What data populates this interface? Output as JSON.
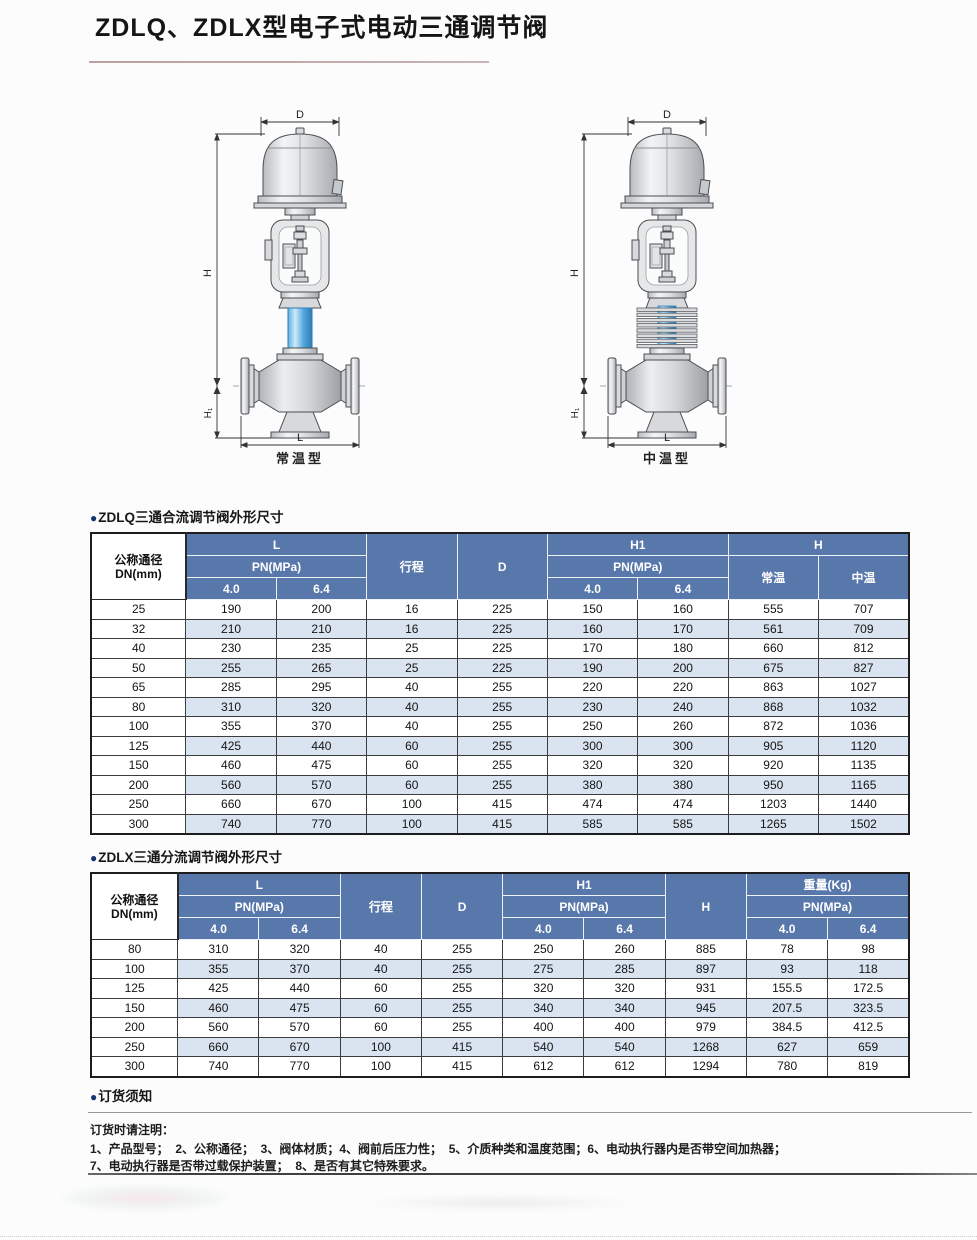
{
  "page": {
    "title": "ZDLQ、ZDLX型电子式电动三通调节阀"
  },
  "bullet": "●",
  "drawings": {
    "labels": {
      "d": "D",
      "h": "H",
      "h1": "H₁",
      "l": "L"
    },
    "left_caption": "常温型",
    "right_caption": "中温型"
  },
  "table1": {
    "title": "ZDLQ三通合流调节阀外形尺寸",
    "header": {
      "dn_line1": "公称通径",
      "dn_line2": "DN(mm)",
      "l": "L",
      "pn": "PN(MPa)",
      "p40": "4.0",
      "p64": "6.4",
      "stroke": "行程",
      "d": "D",
      "h1": "H1",
      "h": "H",
      "normal": "常温",
      "mid": "中温"
    },
    "rows": [
      [
        "25",
        "190",
        "200",
        "16",
        "225",
        "150",
        "160",
        "555",
        "707"
      ],
      [
        "32",
        "210",
        "210",
        "16",
        "225",
        "160",
        "170",
        "561",
        "709"
      ],
      [
        "40",
        "230",
        "235",
        "25",
        "225",
        "170",
        "180",
        "660",
        "812"
      ],
      [
        "50",
        "255",
        "265",
        "25",
        "225",
        "190",
        "200",
        "675",
        "827"
      ],
      [
        "65",
        "285",
        "295",
        "40",
        "255",
        "220",
        "220",
        "863",
        "1027"
      ],
      [
        "80",
        "310",
        "320",
        "40",
        "255",
        "230",
        "240",
        "868",
        "1032"
      ],
      [
        "100",
        "355",
        "370",
        "40",
        "255",
        "250",
        "260",
        "872",
        "1036"
      ],
      [
        "125",
        "425",
        "440",
        "60",
        "255",
        "300",
        "300",
        "905",
        "1120"
      ],
      [
        "150",
        "460",
        "475",
        "60",
        "255",
        "320",
        "320",
        "920",
        "1135"
      ],
      [
        "200",
        "560",
        "570",
        "60",
        "255",
        "380",
        "380",
        "950",
        "1165"
      ],
      [
        "250",
        "660",
        "670",
        "100",
        "415",
        "474",
        "474",
        "1203",
        "1440"
      ],
      [
        "300",
        "740",
        "770",
        "100",
        "415",
        "585",
        "585",
        "1265",
        "1502"
      ]
    ]
  },
  "table2": {
    "title": "ZDLX三通分流调节阀外形尺寸",
    "header": {
      "dn_line1": "公称通径",
      "dn_line2": "DN(mm)",
      "l": "L",
      "pn": "PN(MPa)",
      "p40": "4.0",
      "p64": "6.4",
      "stroke": "行程",
      "d": "D",
      "h1": "H1",
      "h": "H",
      "weight": "重量(Kg)"
    },
    "rows": [
      [
        "80",
        "310",
        "320",
        "40",
        "255",
        "250",
        "260",
        "885",
        "78",
        "98"
      ],
      [
        "100",
        "355",
        "370",
        "40",
        "255",
        "275",
        "285",
        "897",
        "93",
        "118"
      ],
      [
        "125",
        "425",
        "440",
        "60",
        "255",
        "320",
        "320",
        "931",
        "155.5",
        "172.5"
      ],
      [
        "150",
        "460",
        "475",
        "60",
        "255",
        "340",
        "340",
        "945",
        "207.5",
        "323.5"
      ],
      [
        "200",
        "560",
        "570",
        "60",
        "255",
        "400",
        "400",
        "979",
        "384.5",
        "412.5"
      ],
      [
        "250",
        "660",
        "670",
        "100",
        "415",
        "540",
        "540",
        "1268",
        "627",
        "659"
      ],
      [
        "300",
        "740",
        "770",
        "100",
        "415",
        "612",
        "612",
        "1294",
        "780",
        "819"
      ]
    ]
  },
  "notes": {
    "title": "订货须知",
    "intro": "订货时请注明：",
    "line1": "1、产品型号；  2、公称通径；  3、阀体材质；4、阀前后压力性；  5、介质种类和温度范围；6、电动执行器内是否带空间加热器；",
    "line2": "7、电动执行器是否带过载保护装置；  8、是否有其它特殊要求。"
  },
  "colors": {
    "header_blue": "#5878ab",
    "row_stripe": "#d9e4f0",
    "stem_blue": "#52a6dd",
    "bullet_navy": "#16356e"
  }
}
